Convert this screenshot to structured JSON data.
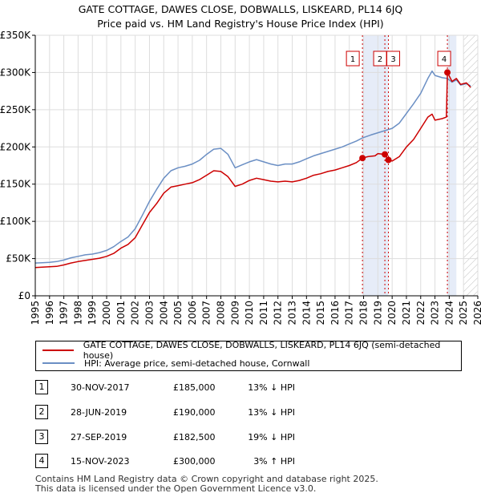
{
  "title": {
    "line1": "GATE COTTAGE, DAWES CLOSE, DOBWALLS, LISKEARD, PL14 6JQ",
    "line2": "Price paid vs. HM Land Registry's House Price Index (HPI)"
  },
  "chart_data": {
    "type": "line",
    "xlim": [
      1995,
      2026
    ],
    "ylim": [
      0,
      350000
    ],
    "yticks": [
      {
        "value": 0,
        "label": "£0"
      },
      {
        "value": 50000,
        "label": "£50K"
      },
      {
        "value": 100000,
        "label": "£100K"
      },
      {
        "value": 150000,
        "label": "£150K"
      },
      {
        "value": 200000,
        "label": "£200K"
      },
      {
        "value": 250000,
        "label": "£250K"
      },
      {
        "value": 300000,
        "label": "£300K"
      },
      {
        "value": 350000,
        "label": "£350K"
      }
    ],
    "xticks": [
      "1995",
      "1996",
      "1997",
      "1998",
      "1999",
      "2000",
      "2001",
      "2002",
      "2003",
      "2004",
      "2005",
      "2006",
      "2007",
      "2008",
      "2009",
      "2010",
      "2011",
      "2012",
      "2013",
      "2014",
      "2015",
      "2016",
      "2017",
      "2018",
      "2019",
      "2020",
      "2021",
      "2022",
      "2023",
      "2024",
      "2025",
      "2026"
    ],
    "colors": {
      "property": "#cc0000",
      "hpi": "#6b8fc4",
      "shade": "#e6ecf8",
      "sale_line": "#cc0000",
      "future_hatch": "#bbbbbb"
    },
    "series": [
      {
        "name": "GATE COTTAGE, DAWES CLOSE, DOBWALLS, LISKEARD, PL14 6JQ (semi-detached house)",
        "color": "#cc0000",
        "points": [
          [
            1995.0,
            38000
          ],
          [
            1995.5,
            38500
          ],
          [
            1996.0,
            39000
          ],
          [
            1996.5,
            39500
          ],
          [
            1997.0,
            41500
          ],
          [
            1997.5,
            44000
          ],
          [
            1998.0,
            46000
          ],
          [
            1998.5,
            47500
          ],
          [
            1999.0,
            49000
          ],
          [
            1999.5,
            50500
          ],
          [
            2000.0,
            53000
          ],
          [
            2000.5,
            57000
          ],
          [
            2001.0,
            64000
          ],
          [
            2001.5,
            69000
          ],
          [
            2002.0,
            78000
          ],
          [
            2002.5,
            95000
          ],
          [
            2003.0,
            112000
          ],
          [
            2003.5,
            124000
          ],
          [
            2004.0,
            138000
          ],
          [
            2004.5,
            146000
          ],
          [
            2005.0,
            148000
          ],
          [
            2005.5,
            150000
          ],
          [
            2006.0,
            152000
          ],
          [
            2006.5,
            156000
          ],
          [
            2007.0,
            162000
          ],
          [
            2007.5,
            168000
          ],
          [
            2008.0,
            167000
          ],
          [
            2008.5,
            160000
          ],
          [
            2009.0,
            147000
          ],
          [
            2009.5,
            150000
          ],
          [
            2010.0,
            155000
          ],
          [
            2010.5,
            158000
          ],
          [
            2011.0,
            156000
          ],
          [
            2011.5,
            154000
          ],
          [
            2012.0,
            153000
          ],
          [
            2012.5,
            154000
          ],
          [
            2013.0,
            153000
          ],
          [
            2013.5,
            155000
          ],
          [
            2014.0,
            158000
          ],
          [
            2014.5,
            162000
          ],
          [
            2015.0,
            164000
          ],
          [
            2015.5,
            167000
          ],
          [
            2016.0,
            169000
          ],
          [
            2016.5,
            172000
          ],
          [
            2017.0,
            175000
          ],
          [
            2017.5,
            179000
          ],
          [
            2017.92,
            185000
          ],
          [
            2018.3,
            187000
          ],
          [
            2018.8,
            188000
          ],
          [
            2019.0,
            191000
          ],
          [
            2019.49,
            190000
          ],
          [
            2019.74,
            182500
          ],
          [
            2020.0,
            181000
          ],
          [
            2020.5,
            187000
          ],
          [
            2021.0,
            200000
          ],
          [
            2021.5,
            210000
          ],
          [
            2022.0,
            225000
          ],
          [
            2022.5,
            240000
          ],
          [
            2022.8,
            244000
          ],
          [
            2023.0,
            236000
          ],
          [
            2023.5,
            238000
          ],
          [
            2023.8,
            240000
          ],
          [
            2023.87,
            300000
          ],
          [
            2024.2,
            288000
          ],
          [
            2024.5,
            292000
          ],
          [
            2024.8,
            284000
          ],
          [
            2025.2,
            286000
          ],
          [
            2025.5,
            280000
          ]
        ]
      },
      {
        "name": "HPI: Average price, semi-detached house, Cornwall",
        "color": "#6b8fc4",
        "points": [
          [
            1995.0,
            44000
          ],
          [
            1995.5,
            44500
          ],
          [
            1996.0,
            45000
          ],
          [
            1996.5,
            46000
          ],
          [
            1997.0,
            48000
          ],
          [
            1997.5,
            51000
          ],
          [
            1998.0,
            53000
          ],
          [
            1998.5,
            55000
          ],
          [
            1999.0,
            56000
          ],
          [
            1999.5,
            58000
          ],
          [
            2000.0,
            61000
          ],
          [
            2000.5,
            66000
          ],
          [
            2001.0,
            73000
          ],
          [
            2001.5,
            79000
          ],
          [
            2002.0,
            90000
          ],
          [
            2002.5,
            108000
          ],
          [
            2003.0,
            127000
          ],
          [
            2003.5,
            143000
          ],
          [
            2004.0,
            158000
          ],
          [
            2004.5,
            168000
          ],
          [
            2005.0,
            172000
          ],
          [
            2005.5,
            174000
          ],
          [
            2006.0,
            177000
          ],
          [
            2006.5,
            182000
          ],
          [
            2007.0,
            190000
          ],
          [
            2007.5,
            197000
          ],
          [
            2008.0,
            198000
          ],
          [
            2008.5,
            190000
          ],
          [
            2009.0,
            172000
          ],
          [
            2009.5,
            176000
          ],
          [
            2010.0,
            180000
          ],
          [
            2010.5,
            183000
          ],
          [
            2011.0,
            180000
          ],
          [
            2011.5,
            177000
          ],
          [
            2012.0,
            175000
          ],
          [
            2012.5,
            177000
          ],
          [
            2013.0,
            177000
          ],
          [
            2013.5,
            180000
          ],
          [
            2014.0,
            184000
          ],
          [
            2014.5,
            188000
          ],
          [
            2015.0,
            191000
          ],
          [
            2015.5,
            194000
          ],
          [
            2016.0,
            197000
          ],
          [
            2016.5,
            200000
          ],
          [
            2017.0,
            204000
          ],
          [
            2017.5,
            208000
          ],
          [
            2017.92,
            212000
          ],
          [
            2018.5,
            216000
          ],
          [
            2019.0,
            219000
          ],
          [
            2019.5,
            222000
          ],
          [
            2020.0,
            225000
          ],
          [
            2020.5,
            232000
          ],
          [
            2021.0,
            245000
          ],
          [
            2021.5,
            258000
          ],
          [
            2022.0,
            272000
          ],
          [
            2022.5,
            292000
          ],
          [
            2022.8,
            302000
          ],
          [
            2023.0,
            296000
          ],
          [
            2023.5,
            293000
          ],
          [
            2023.87,
            292000
          ],
          [
            2024.2,
            287000
          ],
          [
            2024.5,
            290000
          ],
          [
            2024.8,
            283000
          ],
          [
            2025.2,
            285000
          ],
          [
            2025.5,
            282000
          ]
        ]
      }
    ],
    "sales": [
      {
        "label": "1",
        "date": 2017.92,
        "price": 185000
      },
      {
        "label": "2",
        "date": 2019.49,
        "price": 190000
      },
      {
        "label": "3",
        "date": 2019.74,
        "price": 182500
      },
      {
        "label": "4",
        "date": 2023.87,
        "price": 300000
      }
    ],
    "shaded_ranges": [
      [
        2017.92,
        2019.74
      ],
      [
        2023.87,
        2024.5
      ]
    ],
    "future_from": 2025.0
  },
  "legend": {
    "property_label": "GATE COTTAGE, DAWES CLOSE, DOBWALLS, LISKEARD, PL14 6JQ (semi-detached house)",
    "hpi_label": "HPI: Average price, semi-detached house, Cornwall"
  },
  "sales_table": [
    {
      "num": "1",
      "date": "30-NOV-2017",
      "price": "£185,000",
      "hpi": "13% ↓ HPI"
    },
    {
      "num": "2",
      "date": "28-JUN-2019",
      "price": "£190,000",
      "hpi": "13% ↓ HPI"
    },
    {
      "num": "3",
      "date": "27-SEP-2019",
      "price": "£182,500",
      "hpi": "19% ↓ HPI"
    },
    {
      "num": "4",
      "date": "15-NOV-2023",
      "price": "£300,000",
      "hpi": "3% ↑ HPI"
    }
  ],
  "footer": {
    "line1": "Contains HM Land Registry data © Crown copyright and database right 2025.",
    "line2": "This data is licensed under the Open Government Licence v3.0."
  }
}
